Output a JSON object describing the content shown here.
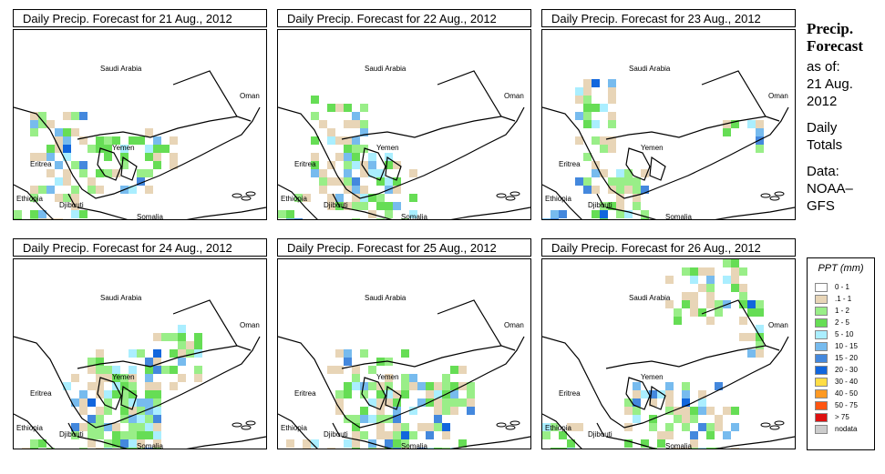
{
  "panels": [
    {
      "title": "Daily Precip. Forecast for  21 Aug., 2012"
    },
    {
      "title": "Daily Precip. Forecast for  22 Aug., 2012"
    },
    {
      "title": "Daily Precip. Forecast for  23 Aug., 2012"
    },
    {
      "title": "Daily Precip. Forecast for  24 Aug., 2012"
    },
    {
      "title": "Daily Precip. Forecast for  25 Aug., 2012"
    },
    {
      "title": "Daily Precip. Forecast for  26 Aug., 2012"
    }
  ],
  "map_labels": {
    "saudi": "Saudi Arabia",
    "oman": "Oman",
    "yemen": "Yemen",
    "eritrea": "Eritrea",
    "ethiopia": "Ethiopia",
    "djibouti": "Djibouti",
    "somalia": "Somalia"
  },
  "sidebar": {
    "title_line1": "Precip.",
    "title_line2": "Forecast",
    "asof_line1": "as of:",
    "asof_line2": "21 Aug.",
    "asof_line3": "2012",
    "daily_line1": "Daily",
    "daily_line2": "Totals",
    "data_line1": "Data:",
    "data_line2": "NOAA–",
    "data_line3": "GFS"
  },
  "legend": {
    "title": "PPT (mm)",
    "items": [
      {
        "label": "0 - 1",
        "color": "#ffffff"
      },
      {
        "label": ".1 - 1",
        "color": "#e8d5b7"
      },
      {
        "label": "1 - 2",
        "color": "#99ee88"
      },
      {
        "label": "2 - 5",
        "color": "#66dd55"
      },
      {
        "label": "5 - 10",
        "color": "#aaeeff"
      },
      {
        "label": "10 - 15",
        "color": "#77bbee"
      },
      {
        "label": "15 - 20",
        "color": "#4488dd"
      },
      {
        "label": "20 - 30",
        "color": "#1166dd"
      },
      {
        "label": "30 - 40",
        "color": "#ffdd44"
      },
      {
        "label": "40 - 50",
        "color": "#ff9922"
      },
      {
        "label": "50 - 75",
        "color": "#ff5511"
      },
      {
        "label": "> 75",
        "color": "#dd1111"
      },
      {
        "label": "nodata",
        "color": "#cccccc"
      }
    ]
  }
}
